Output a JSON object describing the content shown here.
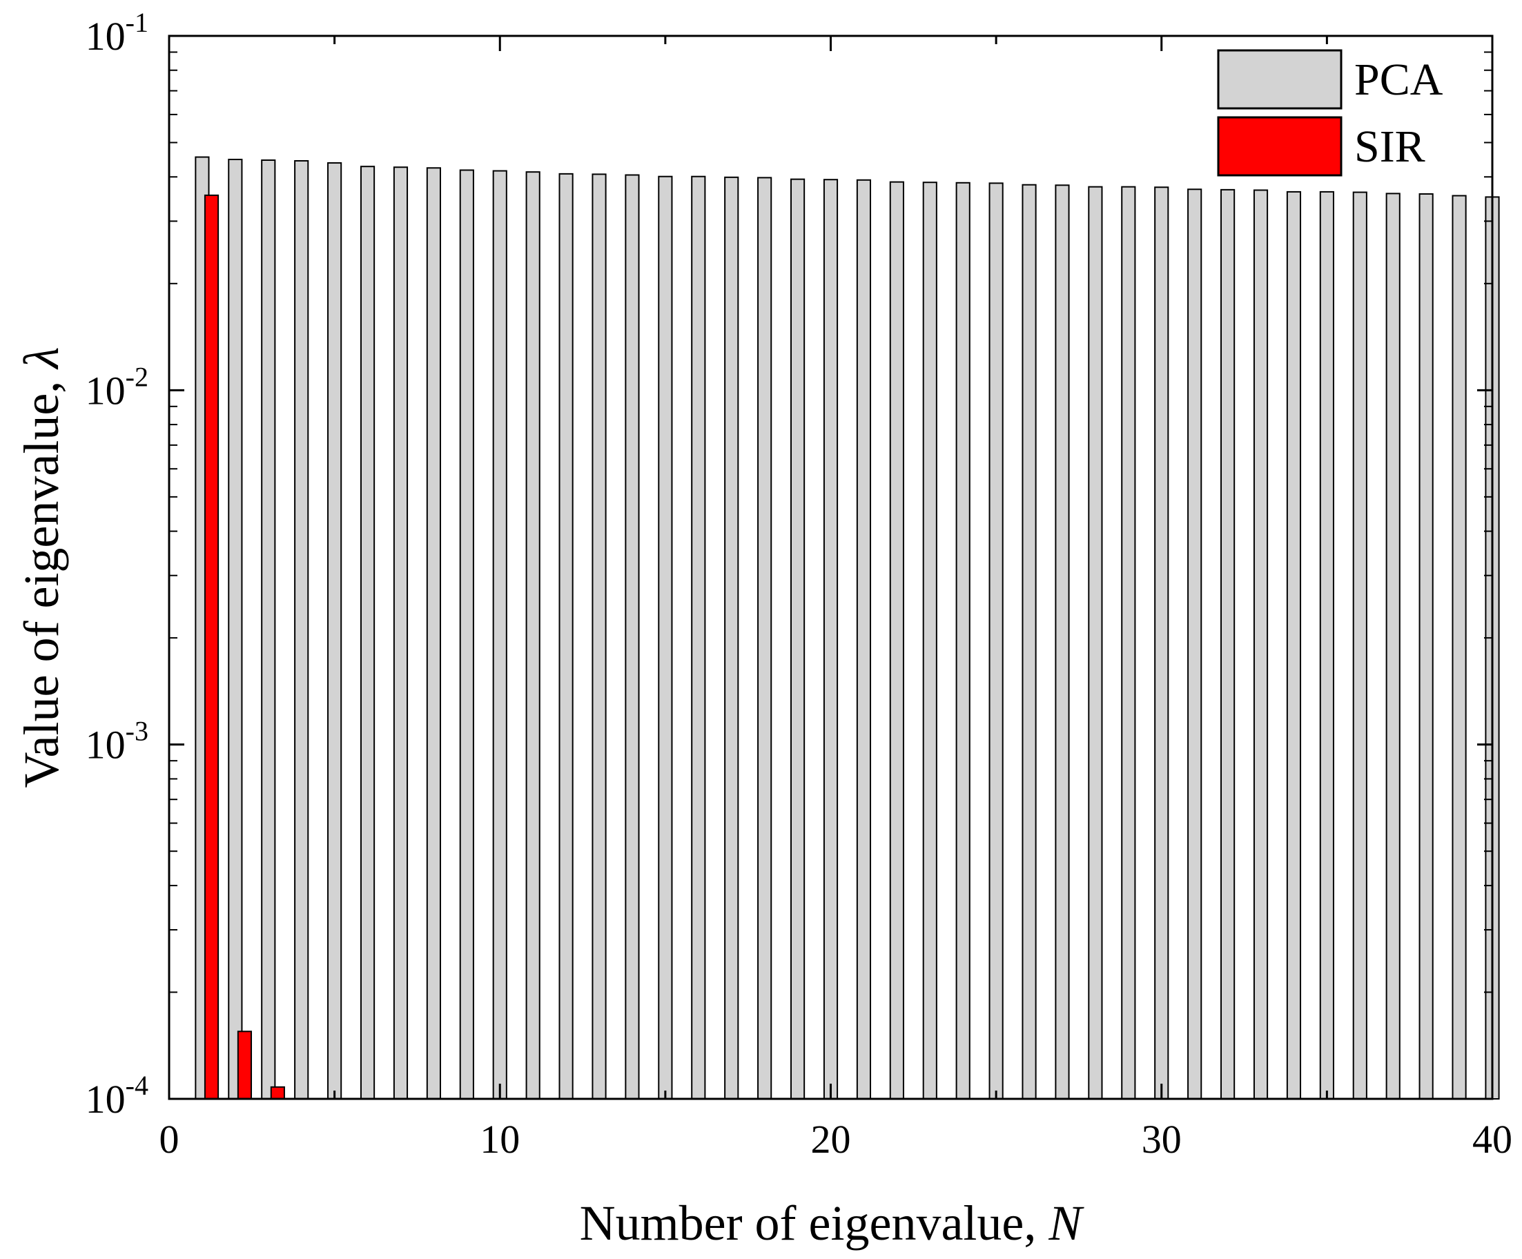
{
  "chart_data": {
    "type": "bar",
    "title": "",
    "xlabel": "Number of eigenvalue, ",
    "xlabel_var": "N",
    "ylabel": "Value of eigenvalue, ",
    "ylabel_var": "λ",
    "x_scale": "linear",
    "y_scale": "log",
    "xlim": [
      0,
      40
    ],
    "ylim": [
      0.0001,
      0.1
    ],
    "x_ticks": [
      "0",
      "10",
      "20",
      "30",
      "40"
    ],
    "y_ticks": [
      {
        "base": "10",
        "exp": "-4"
      },
      {
        "base": "10",
        "exp": "-3"
      },
      {
        "base": "10",
        "exp": "-2"
      },
      {
        "base": "10",
        "exp": "-1"
      }
    ],
    "x": [
      1,
      2,
      3,
      4,
      5,
      6,
      7,
      8,
      9,
      10,
      11,
      12,
      13,
      14,
      15,
      16,
      17,
      18,
      19,
      20,
      21,
      22,
      23,
      24,
      25,
      26,
      27,
      28,
      29,
      30,
      31,
      32,
      33,
      34,
      35,
      36,
      37,
      38,
      39,
      40
    ],
    "legend_position": "top-right",
    "grid": false,
    "series": [
      {
        "name": "PCA",
        "color": "#d3d3d3",
        "values": [
          0.0455,
          0.0448,
          0.0446,
          0.0444,
          0.0438,
          0.0428,
          0.0426,
          0.0424,
          0.0418,
          0.0416,
          0.0413,
          0.0408,
          0.0407,
          0.0405,
          0.0401,
          0.0401,
          0.0399,
          0.0398,
          0.0394,
          0.0393,
          0.0392,
          0.0387,
          0.0386,
          0.0385,
          0.0384,
          0.038,
          0.0379,
          0.0375,
          0.0375,
          0.0374,
          0.0369,
          0.0368,
          0.0367,
          0.0363,
          0.0363,
          0.0362,
          0.0359,
          0.0358,
          0.0354,
          0.0351
        ]
      },
      {
        "name": "SIR",
        "color": "#ff0000",
        "values": [
          0.0355,
          0.000155,
          0.000108,
          0.0001,
          0.0001,
          0.0001,
          0.0001,
          0.0001,
          0.0001,
          0.0001,
          0.0001,
          0.0001,
          0.0001,
          0.0001,
          0.0001,
          0.0001,
          0.0001,
          0.0001,
          0.0001,
          0.0001,
          0.0001,
          0.0001,
          0.0001,
          0.0001,
          0.0001,
          0.0001,
          0.0001,
          0.0001,
          0.0001,
          0.0001,
          0.0001,
          0.0001,
          0.0001,
          0.0001,
          0.0001,
          0.0001,
          0.0001,
          0.0001,
          0.0001,
          0.0001
        ]
      }
    ]
  }
}
